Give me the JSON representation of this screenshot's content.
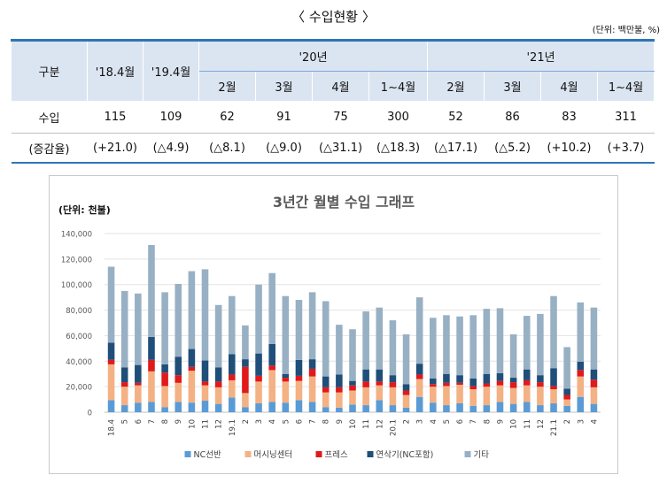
{
  "page": {
    "title": "〈 수입현황 〉",
    "unit": "(단위: 백만불, %)"
  },
  "table": {
    "col_gubun": "구분",
    "col_184": "'18.4월",
    "col_194": "'19.4월",
    "year_20": "'20년",
    "year_21": "'21년",
    "months": [
      "2월",
      "3월",
      "4월",
      "1~4월",
      "2월",
      "3월",
      "4월",
      "1~4월"
    ],
    "row_import_label": "수입",
    "row_import": [
      "115",
      "109",
      "62",
      "91",
      "75",
      "300",
      "52",
      "86",
      "83",
      "311"
    ],
    "row_change_label": "(증감율)",
    "row_change": [
      "(+21.0)",
      "(△4.9)",
      "(△8.1)",
      "(△9.0)",
      "(△31.1)",
      "(△18.3)",
      "(△17.1)",
      "(△5.2)",
      "(+10.2)",
      "(+3.7)"
    ]
  },
  "chart_data": {
    "type": "bar",
    "stacked": true,
    "title": "3년간 월별 수입 그래프",
    "ylabel": "(단위: 천불)",
    "xlabel": "",
    "ylim": [
      0,
      140000
    ],
    "yticks": [
      "0",
      "20,000",
      "40,000",
      "60,000",
      "80,000",
      "100,000",
      "120,000",
      "140,000"
    ],
    "grid": true,
    "legend_position": "bottom",
    "categories": [
      "18.4",
      "5",
      "6",
      "7",
      "8",
      "9",
      "10",
      "11",
      "12",
      "19.1",
      "2",
      "3",
      "4",
      "5",
      "6",
      "7",
      "8",
      "9",
      "10",
      "11",
      "12",
      "20.1",
      "2",
      "3",
      "4",
      "5",
      "6",
      "7",
      "8",
      "9",
      "10",
      "11",
      "12",
      "21.1",
      "2",
      "3",
      "4"
    ],
    "colors": [
      "#5b9bd5",
      "#f4b183",
      "#e0191c",
      "#1f4e79",
      "#98b0c4"
    ],
    "series": [
      {
        "name": "NC선반",
        "values": [
          9500,
          5500,
          7500,
          8000,
          4000,
          8000,
          7500,
          9000,
          6500,
          11500,
          4000,
          7000,
          8000,
          7500,
          9500,
          8000,
          4000,
          3500,
          6000,
          5500,
          9500,
          5500,
          3500,
          12000,
          7500,
          5500,
          7000,
          5000,
          5500,
          8000,
          6500,
          8000,
          5500,
          7000,
          5000,
          12000,
          6500
        ]
      },
      {
        "name": "머시닝센터",
        "values": [
          28000,
          14500,
          13500,
          24000,
          16500,
          15000,
          25000,
          12000,
          13000,
          13500,
          11000,
          17000,
          25000,
          16500,
          15000,
          20000,
          11500,
          12000,
          11000,
          14000,
          11500,
          14000,
          10000,
          14000,
          12500,
          15000,
          14500,
          13000,
          14500,
          13000,
          12500,
          13000,
          14500,
          11000,
          5000,
          16000,
          13000
        ]
      },
      {
        "name": "프레스",
        "values": [
          3500,
          3500,
          2000,
          9000,
          10500,
          6000,
          3000,
          3000,
          4500,
          4500,
          20500,
          4500,
          3500,
          3000,
          4000,
          6000,
          4000,
          4000,
          4000,
          4500,
          3000,
          4000,
          3500,
          3500,
          2000,
          2500,
          1500,
          2500,
          2500,
          3500,
          4500,
          4000,
          3500,
          2500,
          3500,
          5000,
          6000
        ]
      },
      {
        "name": "연삭기(NC포함)",
        "values": [
          13500,
          11500,
          14000,
          18000,
          6500,
          14500,
          14000,
          16500,
          11000,
          16000,
          6000,
          17500,
          17000,
          3000,
          12500,
          7500,
          8500,
          10000,
          3500,
          9500,
          9500,
          5500,
          5000,
          8500,
          4500,
          7000,
          6000,
          6000,
          7500,
          6000,
          3500,
          8500,
          5500,
          14000,
          5000,
          6500,
          8000
        ]
      },
      {
        "name": "기타",
        "values": [
          59500,
          60000,
          56000,
          72000,
          56500,
          57000,
          61000,
          71500,
          49000,
          45500,
          26500,
          54000,
          55500,
          61000,
          47000,
          52500,
          59000,
          39000,
          40500,
          45500,
          48500,
          43000,
          39000,
          52000,
          47500,
          46000,
          46000,
          49500,
          51000,
          51000,
          34000,
          42000,
          48000,
          56500,
          32500,
          46500,
          48500
        ]
      }
    ]
  }
}
